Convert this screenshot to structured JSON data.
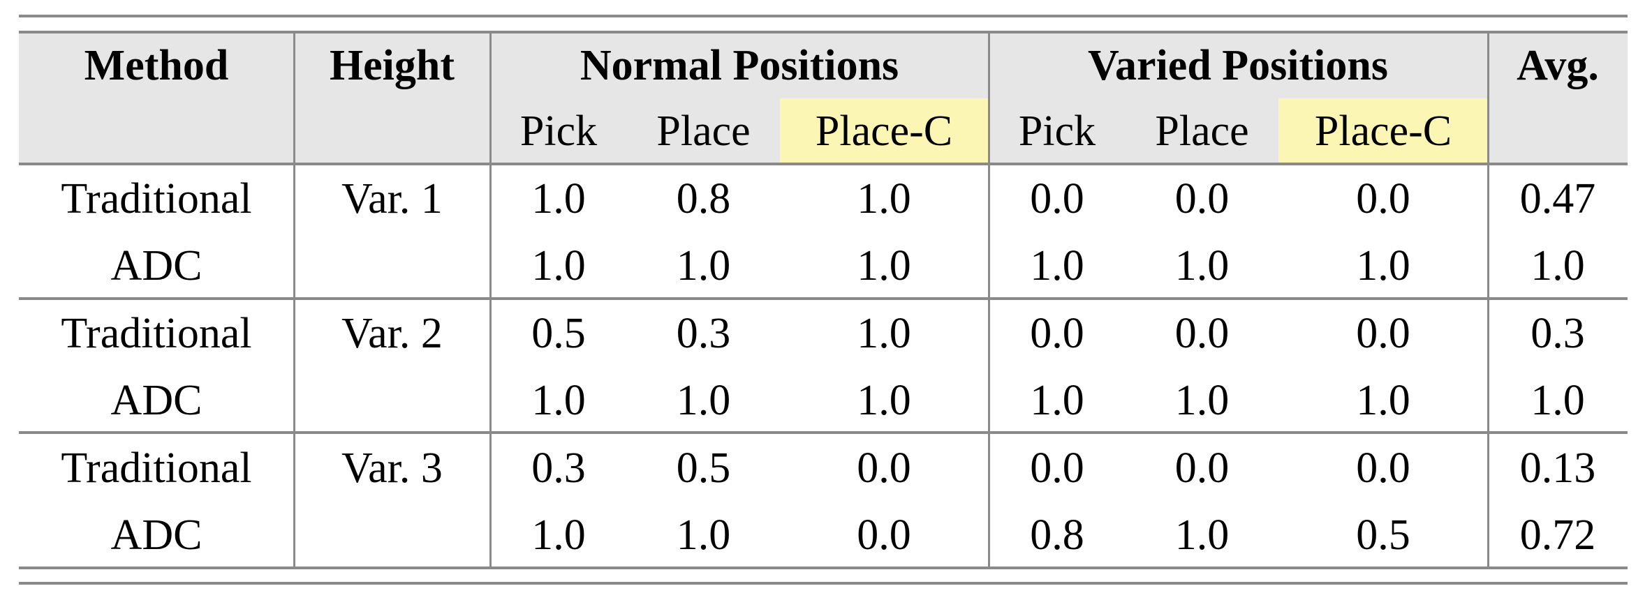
{
  "header": {
    "method": "Method",
    "height": "Height",
    "normal": "Normal Positions",
    "varied": "Varied Positions",
    "avg": "Avg.",
    "sub": [
      "Pick",
      "Place",
      "Place-C",
      "Pick",
      "Place",
      "Place-C"
    ]
  },
  "highlight_color": "#fcf6b4",
  "groups": [
    {
      "height": "Var. 1",
      "rows": [
        {
          "method": "Traditional",
          "values": [
            "1.0",
            "0.8",
            "1.0",
            "0.0",
            "0.0",
            "0.0",
            "0.47"
          ]
        },
        {
          "method": "ADC",
          "values": [
            "1.0",
            "1.0",
            "1.0",
            "1.0",
            "1.0",
            "1.0",
            "1.0"
          ]
        }
      ]
    },
    {
      "height": "Var. 2",
      "rows": [
        {
          "method": "Traditional",
          "values": [
            "0.5",
            "0.3",
            "1.0",
            "0.0",
            "0.0",
            "0.0",
            "0.3"
          ]
        },
        {
          "method": "ADC",
          "values": [
            "1.0",
            "1.0",
            "1.0",
            "1.0",
            "1.0",
            "1.0",
            "1.0"
          ]
        }
      ]
    },
    {
      "height": "Var. 3",
      "rows": [
        {
          "method": "Traditional",
          "values": [
            "0.3",
            "0.5",
            "0.0",
            "0.0",
            "0.0",
            "0.0",
            "0.13"
          ]
        },
        {
          "method": "ADC",
          "values": [
            "1.0",
            "1.0",
            "0.0",
            "0.8",
            "1.0",
            "0.5",
            "0.72"
          ]
        }
      ]
    }
  ]
}
